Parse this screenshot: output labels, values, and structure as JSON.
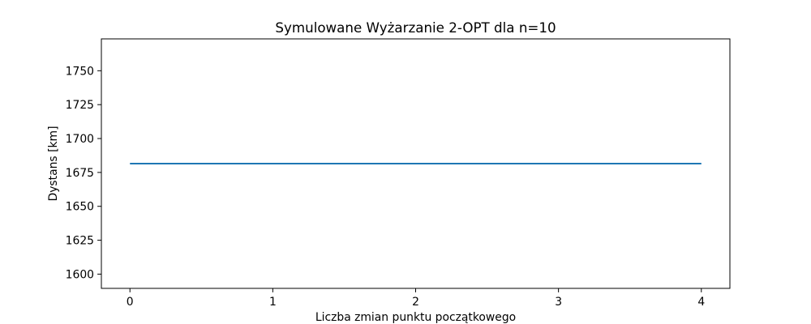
{
  "chart_data": {
    "type": "line",
    "title": "Symulowane Wyżarzanie 2-OPT dla n=10",
    "xlabel": "Liczba zmian punktu początkowego",
    "ylabel": "Dystans [km]",
    "x": [
      0,
      1,
      2,
      3,
      4
    ],
    "series": [
      {
        "values": [
          1681.5,
          1681.5,
          1681.5,
          1681.5,
          1681.5
        ],
        "color": "#1f77b4"
      }
    ],
    "xlim": [
      -0.2,
      4.2
    ],
    "ylim": [
      1589.5,
      1773.5
    ],
    "xticks": [
      0,
      1,
      2,
      3,
      4
    ],
    "yticks": [
      1600,
      1625,
      1650,
      1675,
      1700,
      1725,
      1750
    ],
    "grid": false,
    "legend": "none"
  }
}
